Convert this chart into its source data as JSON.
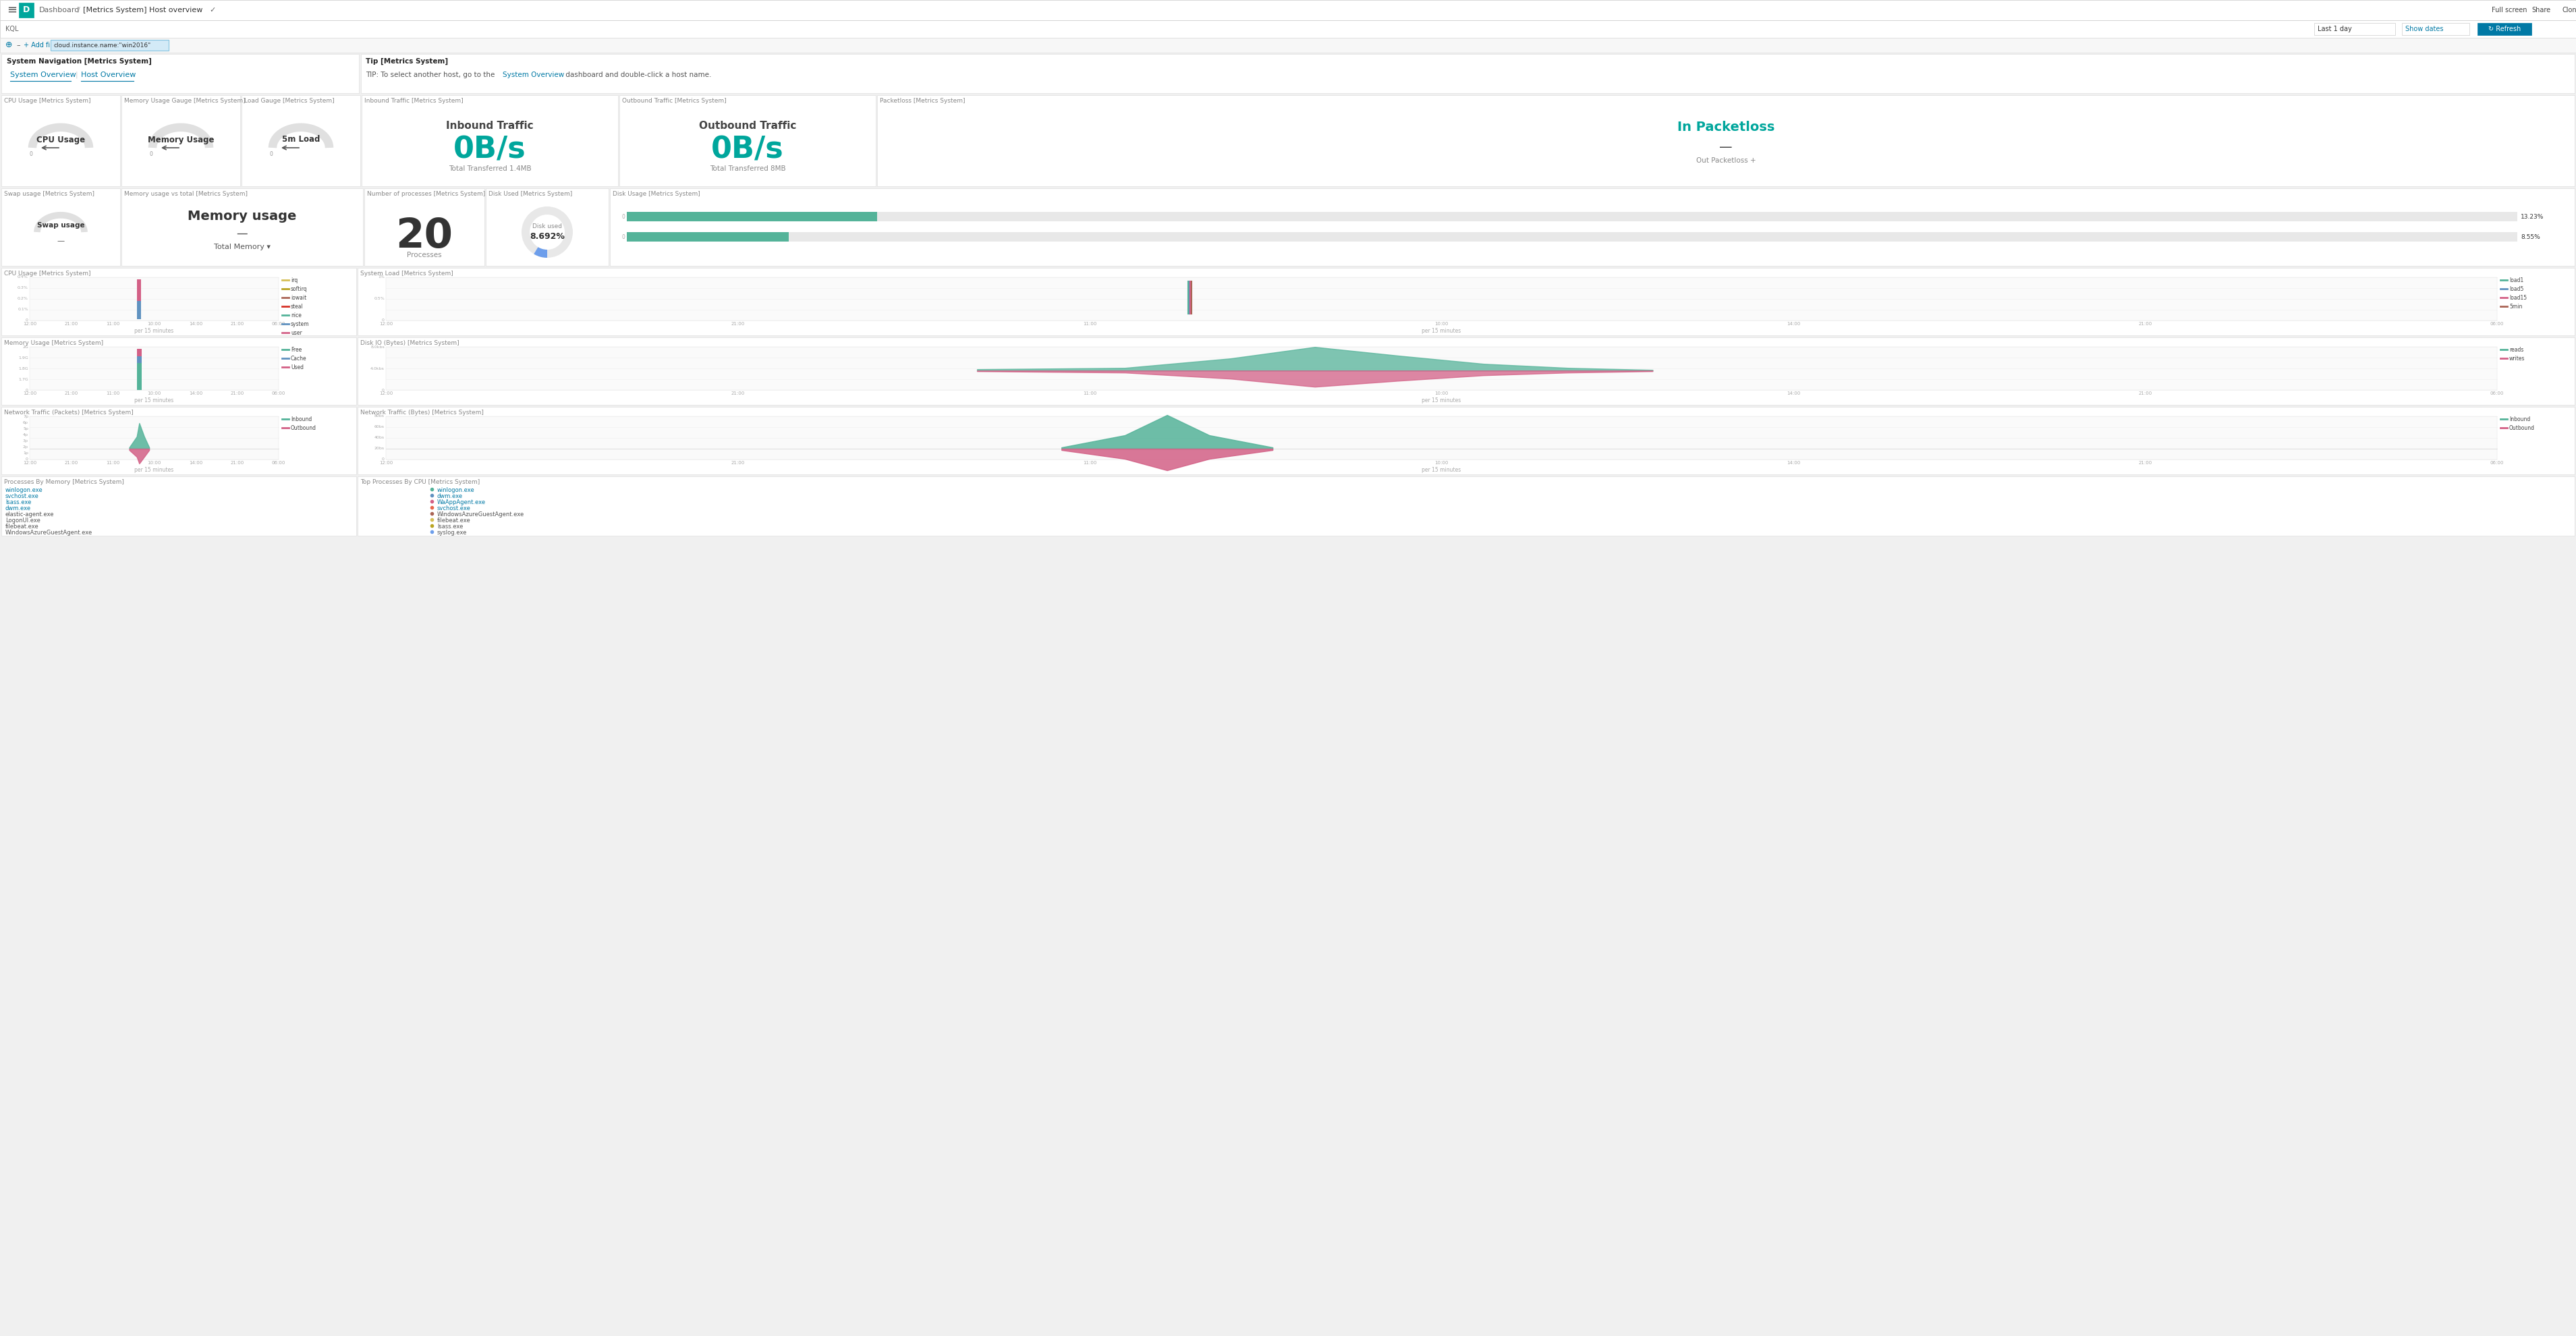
{
  "bg_color": "#f0f0f0",
  "panel_bg": "#ffffff",
  "panel_border": "#e0e0e0",
  "top_bar_bg": "#ffffff",
  "teal": "#00a69c",
  "blue_link": "#0079a5",
  "gauge_panels": [
    {
      "title": "CPU Usage [Metrics System]",
      "label": "CPU Usage"
    },
    {
      "title": "Memory Usage Gauge [Metrics System]",
      "label": "Memory Usage"
    },
    {
      "title": "Load Gauge [Metrics System]",
      "label": "5m Load"
    }
  ],
  "inbound_traffic": {
    "title": "Inbound Traffic [Metrics System]",
    "main_value": "0B/s",
    "sub_label": "Total Transferred",
    "sub_value": "1.4MB"
  },
  "outbound_traffic": {
    "title": "Outbound Traffic [Metrics System]",
    "main_value": "0B/s",
    "sub_label": "Total Transferred",
    "sub_value": "8MB"
  },
  "packetloss": {
    "title": "Packetloss [Metrics System]",
    "main_value": "In Packetloss",
    "sub_value": "—",
    "out_label": "Out Packetloss +"
  },
  "swap_usage": {
    "title": "Swap usage [Metrics System]",
    "label": "Swap usage",
    "sub_value": "—"
  },
  "memory_usage_vs": {
    "title": "Memory usage vs total [Metrics System]",
    "label": "Memory usage",
    "sub_value": "—",
    "total_label": "Total Memory ▾"
  },
  "num_processes": {
    "title": "Number of processes [Metrics System]",
    "value": "20",
    "sub_label": "Processes"
  },
  "disk_used_gauge": {
    "title": "Disk Used [Metrics System]",
    "label": "Disk used",
    "value": "8.692%",
    "value_pct": 8.692
  },
  "disk_usage_bar": {
    "title": "Disk Usage [Metrics System]",
    "bars": [
      {
        "value": 0.1323,
        "color": "#54b399",
        "label": "13.23%"
      },
      {
        "value": 0.0855,
        "color": "#54b399",
        "label": "8.55%"
      }
    ]
  },
  "cpu_usage_chart": {
    "title": "CPU Usage [Metrics System]",
    "series": [
      "irq",
      "softirq",
      "iowait",
      "steal",
      "nice",
      "system",
      "user"
    ],
    "colors": [
      "#d6bf57",
      "#b9a422",
      "#aa6556",
      "#d63228",
      "#54b399",
      "#6092c0",
      "#d36086"
    ],
    "yticks": [
      "0.4%",
      "0.3%",
      "0.2%",
      "0.1%",
      "0"
    ],
    "time_labels": [
      "12:00",
      "21:00",
      "11:00",
      "10:00",
      "14:00",
      "21:00",
      "06:00"
    ],
    "per_label": "per 15 minutes"
  },
  "system_load_chart": {
    "title": "System Load [Metrics System]",
    "series": [
      "load1",
      "load5",
      "load15",
      "5min"
    ],
    "colors": [
      "#54b399",
      "#6092c0",
      "#d36086",
      "#aa6556"
    ],
    "yticks": [
      "1%",
      "0.5%",
      "0"
    ],
    "time_labels": [
      "12:00",
      "21:00",
      "11:00",
      "10:00",
      "14:00",
      "21:00",
      "06:00"
    ],
    "per_label": "per 15 minutes"
  },
  "memory_usage_chart": {
    "title": "Memory Usage [Metrics System]",
    "series": [
      "Free",
      "Cache",
      "Used"
    ],
    "colors": [
      "#54b399",
      "#6092c0",
      "#d36086"
    ],
    "yticks": [
      "2G",
      "1.9G",
      "1.8G",
      "1.7G",
      "0"
    ],
    "time_labels": [
      "12:00",
      "21:00",
      "11:00",
      "10:00",
      "14:00",
      "21:00",
      "06:00"
    ],
    "per_label": "per 15 minutes"
  },
  "disk_io_chart": {
    "title": "Disk IO (Bytes) [Metrics System]",
    "series": [
      "reads",
      "writes"
    ],
    "colors": [
      "#54b399",
      "#d36086"
    ],
    "yticks": [
      "8.0kbs",
      "4.0kbs",
      "0"
    ],
    "time_labels": [
      "12:00",
      "21:00",
      "11:00",
      "10:00",
      "14:00",
      "21:00",
      "06:00"
    ],
    "per_label": "per 15 minutes"
  },
  "network_packets_chart": {
    "title": "Network Traffic (Packets) [Metrics System]",
    "series": [
      "Inbound",
      "Outbound"
    ],
    "colors": [
      "#54b399",
      "#d36086"
    ],
    "yticks": [
      "7p",
      "6p",
      "5p",
      "4p",
      "3p",
      "2p",
      "1p",
      "0"
    ],
    "time_labels": [
      "12:00",
      "21:00",
      "11:00",
      "10:00",
      "14:00",
      "21:00",
      "06:00"
    ],
    "per_label": "per 15 minutes"
  },
  "network_bytes_chart": {
    "title": "Network Traffic (Bytes) [Metrics System]",
    "series": [
      "Inbound",
      "Outbound"
    ],
    "colors": [
      "#54b399",
      "#d36086"
    ],
    "yticks": [
      "80bs",
      "60bs",
      "40bs",
      "20bs",
      "0"
    ],
    "time_labels": [
      "12:00",
      "21:00",
      "11:00",
      "10:00",
      "14:00",
      "21:00",
      "06:00"
    ],
    "per_label": "per 15 minutes"
  },
  "processes_memory": {
    "title": "Processes By Memory [Metrics System]",
    "processes": [
      "winlogon.exe",
      "svchost.exe",
      "lsass.exe",
      "dwm.exe",
      "elastic-agent.exe",
      "LogonUI.exe",
      "filebeat.exe",
      "WindowsAzureGuestAgent.exe"
    ]
  },
  "top_processes_cpu": {
    "title": "Top Processes By CPU [Metrics System]",
    "processes": [
      "winlogon.exe",
      "dwm.exe",
      "WaAppAgent.exe",
      "svchost.exe",
      "WindowsAzureGuestAgent.exe",
      "filebeat.exe",
      "lsass.exe",
      "syslog.exe"
    ]
  }
}
